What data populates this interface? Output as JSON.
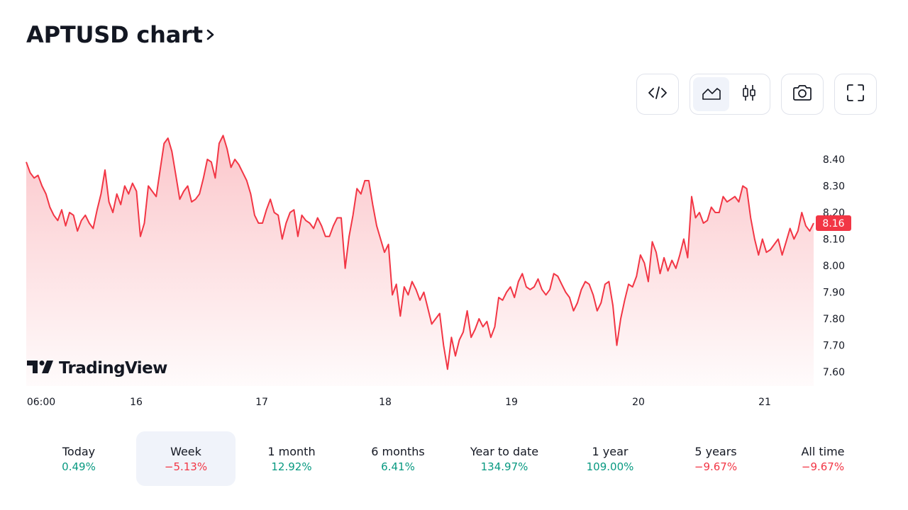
{
  "header": {
    "title": "APTUSD chart"
  },
  "toolbar": {
    "embed_icon": "code-brackets-icon",
    "area_icon": "area-chart-icon",
    "candle_icon": "candlestick-icon",
    "screenshot_icon": "camera-icon",
    "fullscreen_icon": "fullscreen-icon",
    "active_style": "area"
  },
  "branding": {
    "logo_text": "TradingView"
  },
  "chart_data": {
    "type": "area",
    "series": [
      {
        "name": "APTUSD",
        "color": "#f23645",
        "last_price": "8.16",
        "values": [
          8.39,
          8.35,
          8.33,
          8.34,
          8.3,
          8.27,
          8.22,
          8.19,
          8.17,
          8.21,
          8.15,
          8.2,
          8.19,
          8.13,
          8.17,
          8.19,
          8.16,
          8.14,
          8.21,
          8.27,
          8.36,
          8.24,
          8.2,
          8.27,
          8.23,
          8.3,
          8.27,
          8.31,
          8.28,
          8.11,
          8.16,
          8.3,
          8.28,
          8.26,
          8.36,
          8.46,
          8.48,
          8.43,
          8.34,
          8.25,
          8.28,
          8.3,
          8.24,
          8.25,
          8.27,
          8.33,
          8.4,
          8.39,
          8.33,
          8.46,
          8.49,
          8.44,
          8.37,
          8.4,
          8.38,
          8.35,
          8.32,
          8.27,
          8.19,
          8.16,
          8.16,
          8.21,
          8.25,
          8.2,
          8.19,
          8.1,
          8.16,
          8.2,
          8.21,
          8.11,
          8.19,
          8.17,
          8.16,
          8.14,
          8.18,
          8.15,
          8.11,
          8.11,
          8.15,
          8.18,
          8.18,
          7.99,
          8.11,
          8.19,
          8.29,
          8.27,
          8.32,
          8.32,
          8.23,
          8.15,
          8.1,
          8.05,
          8.08,
          7.89,
          7.93,
          7.81,
          7.92,
          7.89,
          7.94,
          7.91,
          7.87,
          7.9,
          7.84,
          7.78,
          7.8,
          7.82,
          7.7,
          7.61,
          7.73,
          7.66,
          7.72,
          7.75,
          7.83,
          7.73,
          7.76,
          7.8,
          7.77,
          7.79,
          7.73,
          7.77,
          7.88,
          7.87,
          7.9,
          7.92,
          7.88,
          7.94,
          7.97,
          7.92,
          7.91,
          7.92,
          7.95,
          7.91,
          7.89,
          7.91,
          7.97,
          7.96,
          7.93,
          7.9,
          7.88,
          7.83,
          7.86,
          7.91,
          7.94,
          7.93,
          7.89,
          7.83,
          7.86,
          7.93,
          7.94,
          7.85,
          7.7,
          7.8,
          7.87,
          7.93,
          7.92,
          7.96,
          8.04,
          8.01,
          7.94,
          8.09,
          8.05,
          7.97,
          8.03,
          7.98,
          8.02,
          7.99,
          8.04,
          8.1,
          8.03,
          8.26,
          8.18,
          8.2,
          8.16,
          8.17,
          8.22,
          8.2,
          8.2,
          8.26,
          8.24,
          8.25,
          8.26,
          8.24,
          8.3,
          8.29,
          8.18,
          8.1,
          8.04,
          8.1,
          8.05,
          8.06,
          8.08,
          8.1,
          8.04,
          8.09,
          8.14,
          8.1,
          8.13,
          8.2,
          8.15,
          8.13,
          8.16
        ]
      }
    ],
    "x_labels": [
      "06:00",
      "16",
      "17",
      "18",
      "19",
      "20",
      "21"
    ],
    "y_ticks": [
      "8.40",
      "8.30",
      "8.20",
      "8.10",
      "8.00",
      "7.90",
      "7.80",
      "7.70",
      "7.60"
    ],
    "ylim": [
      7.56,
      8.5
    ]
  },
  "periods": [
    {
      "label": "Today",
      "value": "0.49%",
      "dir": "pos"
    },
    {
      "label": "Week",
      "value": "−5.13%",
      "dir": "neg"
    },
    {
      "label": "1 month",
      "value": "12.92%",
      "dir": "pos"
    },
    {
      "label": "6 months",
      "value": "6.41%",
      "dir": "pos"
    },
    {
      "label": "Year to date",
      "value": "134.97%",
      "dir": "pos"
    },
    {
      "label": "1 year",
      "value": "109.00%",
      "dir": "pos"
    },
    {
      "label": "5 years",
      "value": "−9.67%",
      "dir": "neg"
    },
    {
      "label": "All time",
      "value": "−9.67%",
      "dir": "neg"
    }
  ],
  "selected_period": "Week"
}
